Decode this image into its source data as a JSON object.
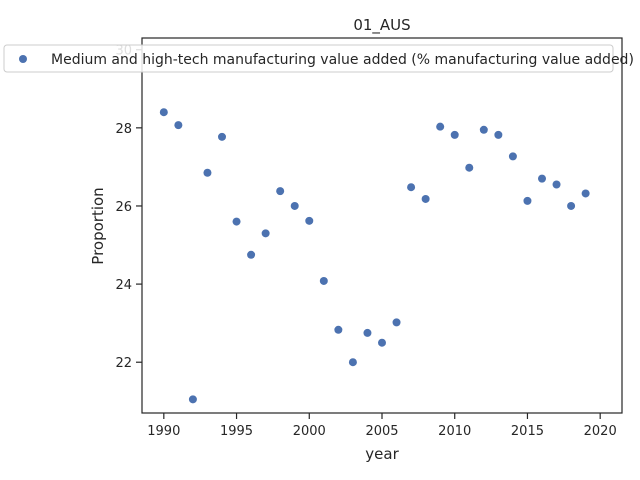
{
  "chart_data": {
    "type": "scatter",
    "title": "01_AUS",
    "xlabel": "year",
    "ylabel": "Proportion",
    "xlim": [
      1988.5,
      2021.5
    ],
    "ylim": [
      20.7,
      30.3
    ],
    "xticks": [
      1990,
      1995,
      2000,
      2005,
      2010,
      2015,
      2020
    ],
    "yticks": [
      22,
      24,
      26,
      28,
      30
    ],
    "grid": false,
    "legend_position": "top",
    "colors": {
      "series": "#4c72b0",
      "axis": "#262626"
    },
    "series": [
      {
        "name": "Medium and high-tech manufacturing value added (% manufacturing value added)",
        "x": [
          1990,
          1991,
          1992,
          1993,
          1994,
          1995,
          1996,
          1997,
          1998,
          1999,
          2000,
          2001,
          2002,
          2003,
          2004,
          2005,
          2006,
          2007,
          2008,
          2009,
          2010,
          2011,
          2012,
          2013,
          2014,
          2015,
          2016,
          2017,
          2018,
          2019
        ],
        "y": [
          28.4,
          28.07,
          21.05,
          26.85,
          27.77,
          25.6,
          24.75,
          25.3,
          26.38,
          26.0,
          25.62,
          24.08,
          22.83,
          22.0,
          22.75,
          22.5,
          23.02,
          26.48,
          26.18,
          28.03,
          27.82,
          26.98,
          27.95,
          27.82,
          27.27,
          26.13,
          26.7,
          26.55,
          26.0,
          26.32
        ]
      }
    ]
  }
}
